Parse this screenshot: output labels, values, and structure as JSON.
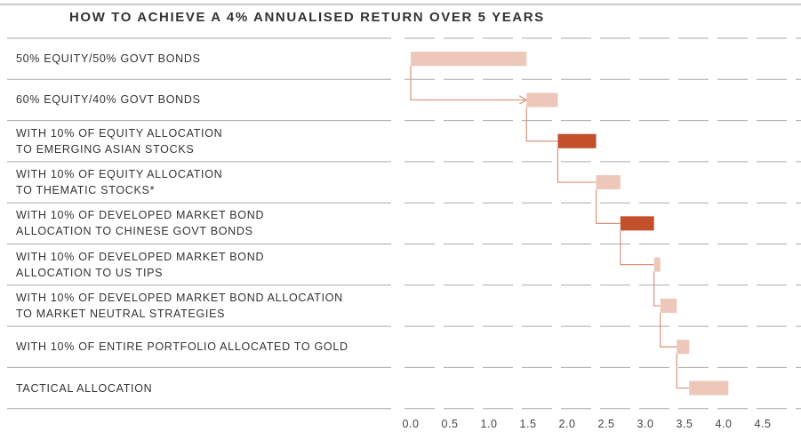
{
  "chart_data": {
    "type": "waterfall",
    "title": "HOW TO ACHIEVE A 4% ANNUALISED RETURN OVER 5 YEARS",
    "categories": [
      "50% EQUITY/50% GOVT BONDS",
      "60% EQUITY/40% GOVT BONDS",
      "WITH 10% OF EQUITY ALLOCATION\nTO EMERGING ASIAN STOCKS",
      "WITH 10% OF EQUITY ALLOCATION\nTO THEMATIC STOCKS*",
      "WITH 10% OF DEVELOPED MARKET BOND\nALLOCATION TO CHINESE GOVT BONDS",
      "WITH 10% OF DEVELOPED MARKET BOND\nALLOCATION TO US TIPS",
      "WITH 10% OF DEVELOPED MARKET BOND ALLOCATION\nTO MARKET NEUTRAL STRATEGIES",
      "WITH 10% OF ENTIRE PORTFOLIO ALLOCATED TO GOLD",
      "TACTICAL ALLOCATION"
    ],
    "values": [
      1.48,
      0.4,
      0.49,
      0.31,
      0.43,
      0.08,
      0.21,
      0.16,
      0.5
    ],
    "colors": [
      "#edc7ba",
      "#edc7ba",
      "#c1502b",
      "#edc7ba",
      "#c1502b",
      "#edc7ba",
      "#edc7ba",
      "#edc7ba",
      "#edc7ba"
    ],
    "xlim": [
      0,
      4.5
    ],
    "xticks": [
      {
        "value": 0,
        "label": "0.0"
      },
      0.5,
      {
        "value": 1,
        "label": "1.0"
      },
      1.5,
      {
        "value": 2,
        "label": "2.0"
      },
      2.5,
      {
        "value": 3,
        "label": "3.0"
      },
      3.5,
      {
        "value": 4,
        "label": "4.0"
      },
      4.5
    ]
  }
}
